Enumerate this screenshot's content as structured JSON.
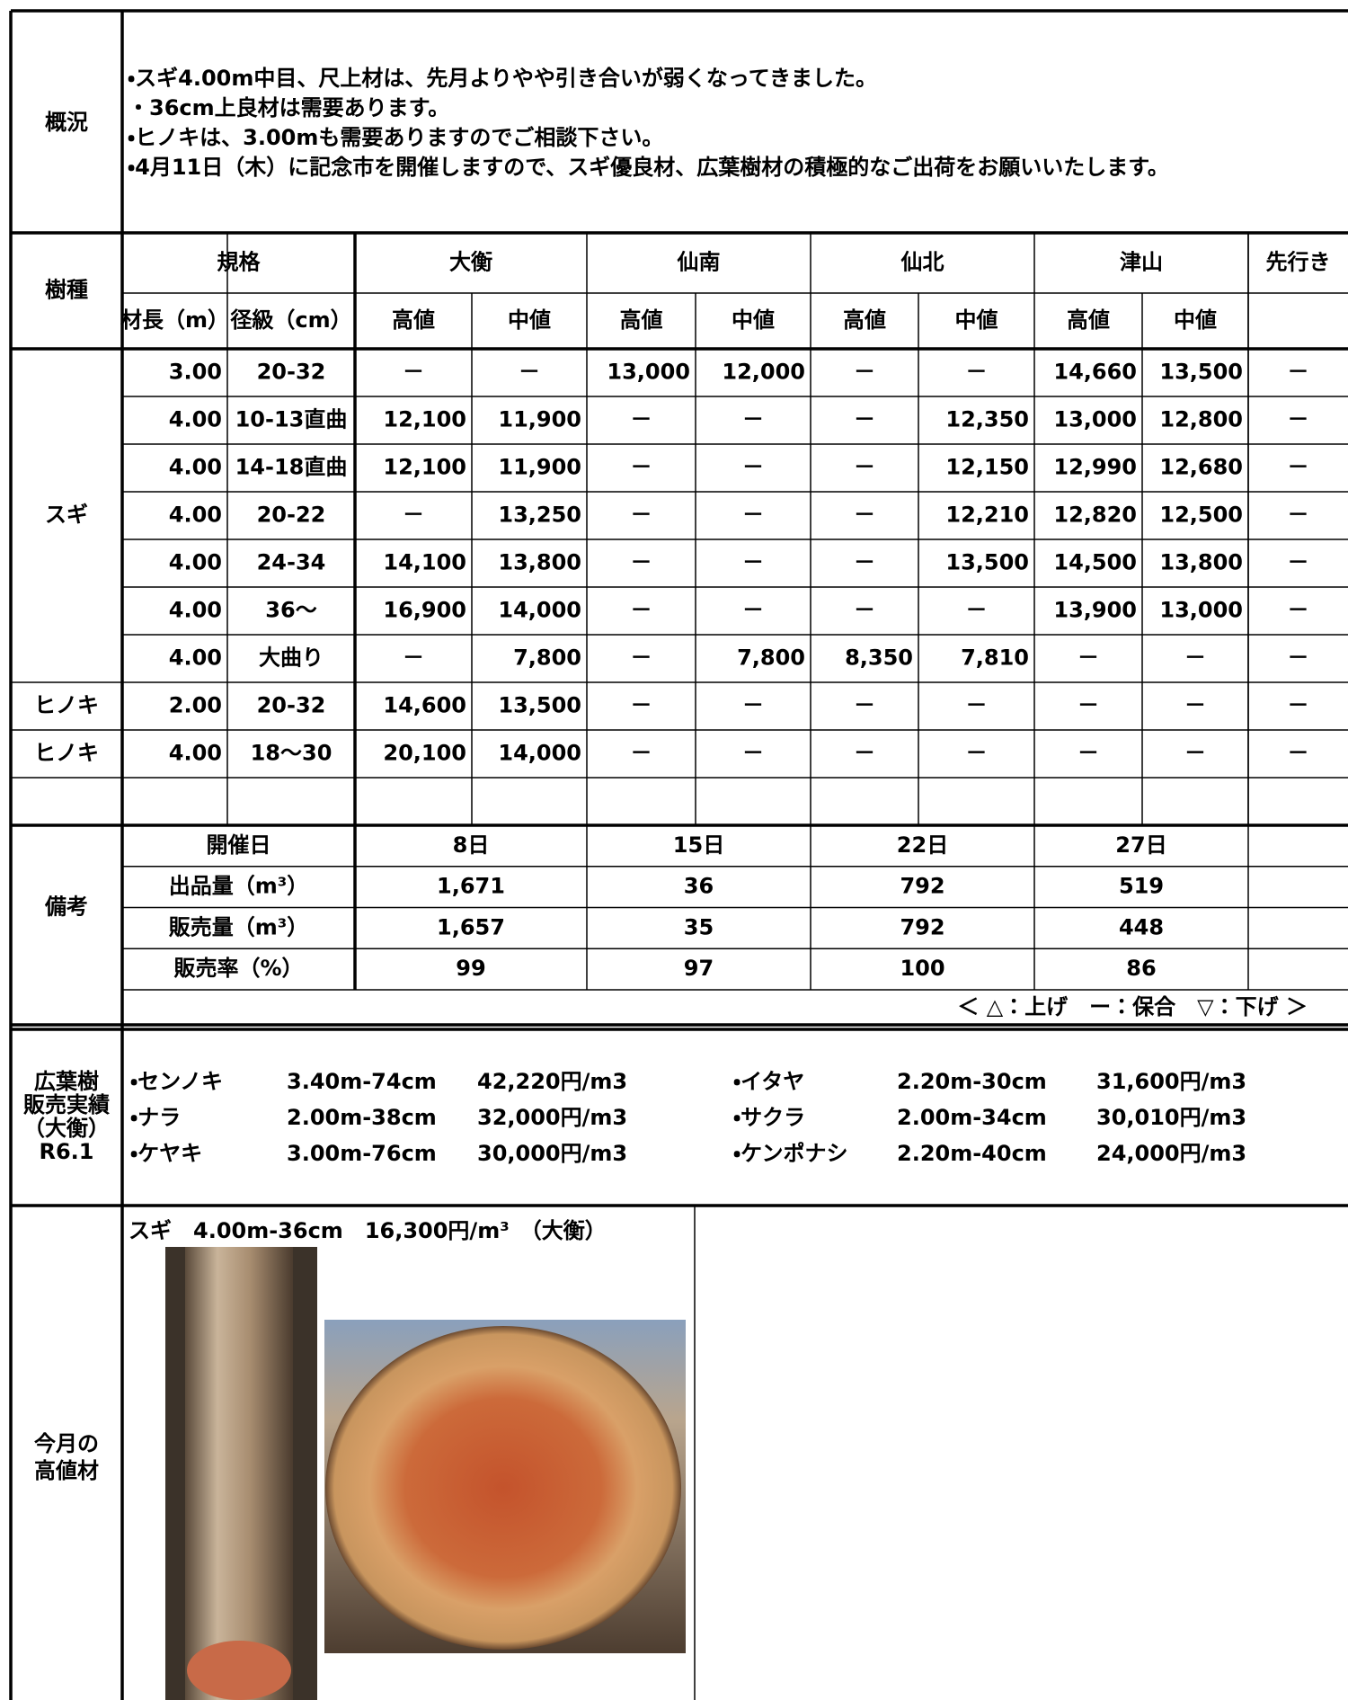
{
  "overview": {
    "label": "概況",
    "lines": [
      "・スギ4.00m中目、尺上材は、先月よりやや引き合いが弱くなってきました。",
      "・36cm上良材は需要あります。",
      "・ヒノキは、3.00mも需要ありますのでご相談下さい。",
      "・4月11日（木）に記念市を開催しますので、スギ優良材、広葉樹材の積極的なご出荷をお願いいたします。"
    ]
  },
  "price_table": {
    "species_header": "樹種",
    "spec_header": "規格",
    "length_header": "材長（m）",
    "diameter_header": "径級（cm）",
    "outlook_header": "先行き",
    "markets": [
      {
        "name": "大衡",
        "high": "高値",
        "mid": "中値"
      },
      {
        "name": "仙南",
        "high": "高値",
        "mid": "中値"
      },
      {
        "name": "仙北",
        "high": "高値",
        "mid": "中値"
      },
      {
        "name": "津山",
        "high": "高値",
        "mid": "中値"
      }
    ],
    "groups": [
      {
        "species": "スギ",
        "rows": [
          {
            "length": "3.00",
            "diameter": "20-32",
            "prices": [
              "－",
              "－",
              "13,000",
              "12,000",
              "－",
              "－",
              "14,660",
              "13,500"
            ],
            "outlook": "－"
          },
          {
            "length": "4.00",
            "diameter": "10-13直曲",
            "prices": [
              "12,100",
              "11,900",
              "－",
              "－",
              "－",
              "12,350",
              "13,000",
              "12,800"
            ],
            "outlook": "－"
          },
          {
            "length": "4.00",
            "diameter": "14-18直曲",
            "prices": [
              "12,100",
              "11,900",
              "－",
              "－",
              "－",
              "12,150",
              "12,990",
              "12,680"
            ],
            "outlook": "－"
          },
          {
            "length": "4.00",
            "diameter": "20-22",
            "prices": [
              "－",
              "13,250",
              "－",
              "－",
              "－",
              "12,210",
              "12,820",
              "12,500"
            ],
            "outlook": "－"
          },
          {
            "length": "4.00",
            "diameter": "24-34",
            "prices": [
              "14,100",
              "13,800",
              "－",
              "－",
              "－",
              "13,500",
              "14,500",
              "13,800"
            ],
            "outlook": "－"
          },
          {
            "length": "4.00",
            "diameter": "36～",
            "prices": [
              "16,900",
              "14,000",
              "－",
              "－",
              "－",
              "－",
              "13,900",
              "13,000"
            ],
            "outlook": "－"
          },
          {
            "length": "4.00",
            "diameter": "大曲り",
            "prices": [
              "－",
              "7,800",
              "－",
              "7,800",
              "8,350",
              "7,810",
              "－",
              "－"
            ],
            "outlook": "－"
          }
        ]
      },
      {
        "species": "ヒノキ",
        "rows": [
          {
            "length": "2.00",
            "diameter": "20-32",
            "prices": [
              "14,600",
              "13,500",
              "－",
              "－",
              "－",
              "－",
              "－",
              "－"
            ],
            "outlook": "－"
          }
        ]
      },
      {
        "species": "ヒノキ",
        "rows": [
          {
            "length": "4.00",
            "diameter": "18～30",
            "prices": [
              "20,100",
              "14,000",
              "－",
              "－",
              "－",
              "－",
              "－",
              "－"
            ],
            "outlook": "－"
          }
        ]
      }
    ]
  },
  "remarks": {
    "label": "備考",
    "rows": [
      {
        "header": "開催日",
        "values": [
          "8日",
          "15日",
          "22日",
          "27日"
        ]
      },
      {
        "header": "出品量（m³）",
        "values": [
          "1,671",
          "36",
          "792",
          "519"
        ]
      },
      {
        "header": "販売量（m³）",
        "values": [
          "1,657",
          "35",
          "792",
          "448"
        ]
      },
      {
        "header": "販売率（%）",
        "values": [
          "99",
          "97",
          "100",
          "86"
        ]
      }
    ],
    "legend": "＜ △：上げ　ー：保合　▽：下げ ＞"
  },
  "hardwood": {
    "label": [
      "広葉樹",
      "販売実績",
      "（大衡）",
      "R6.1"
    ],
    "items": [
      {
        "name": "・センノキ",
        "spec": "3.40m-74cm",
        "price": "42,220円/m3"
      },
      {
        "name": "・ナラ",
        "spec": "2.00m-38cm",
        "price": "32,000円/m3"
      },
      {
        "name": "・ケヤキ",
        "spec": "3.00m-76cm",
        "price": "30,000円/m3"
      },
      {
        "name": "・イタヤ",
        "spec": "2.20m-30cm",
        "price": "31,600円/m3"
      },
      {
        "name": "・サクラ",
        "spec": "2.00m-34cm",
        "price": "30,010円/m3"
      },
      {
        "name": "・ケンポナシ",
        "spec": "2.20m-40cm",
        "price": "24,000円/m3"
      }
    ]
  },
  "featured": {
    "label": [
      "今月の",
      "高値材"
    ],
    "caption": "スギ　4.00m-36cm　16,300円/m³　（大衡）"
  }
}
